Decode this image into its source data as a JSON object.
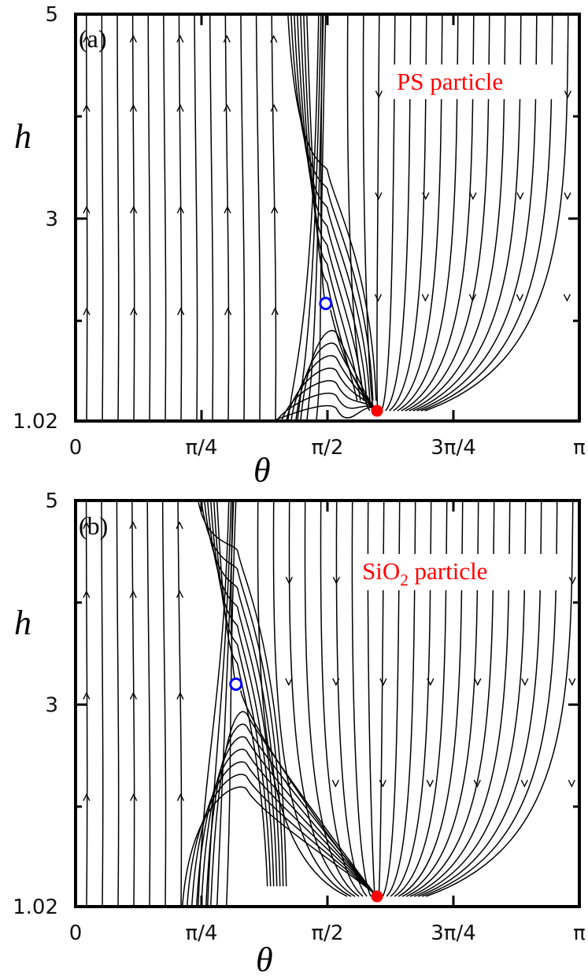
{
  "figure": {
    "colors": {
      "stable": "#ff0000",
      "saddle": "#0000ff",
      "lines": "#000000",
      "label": "#ff0000"
    }
  },
  "chart_data": [
    {
      "type": "streamplot",
      "panel_label": "(a)",
      "particle_label": {
        "main": "PS",
        "sub": "",
        "rest": " particle"
      },
      "xlabel": "θ",
      "ylabel": "h",
      "xlim": [
        0,
        3.1416
      ],
      "ylim": [
        1.02,
        5
      ],
      "x_ticks": [
        {
          "value": 0,
          "label": "0"
        },
        {
          "value": 0.7854,
          "label": "π/4"
        },
        {
          "value": 1.5708,
          "label": "π/2"
        },
        {
          "value": 2.3562,
          "label": "3π/4"
        },
        {
          "value": 3.1416,
          "label": "π"
        }
      ],
      "y_ticks": [
        {
          "value": 1.02,
          "label": "1.02"
        },
        {
          "value": 3,
          "label": "3"
        },
        {
          "value": 5,
          "label": "5"
        }
      ],
      "y_minor_ticks": [
        2,
        4
      ],
      "saddle_point": {
        "theta": 1.56,
        "h": 2.17
      },
      "stable_point": {
        "theta": 1.88,
        "h": 1.12
      },
      "flow_description": "upward for theta < 1.5, downward for theta > 1.6"
    },
    {
      "type": "streamplot",
      "panel_label": "(b)",
      "particle_label": {
        "main": "SiO",
        "sub": "2",
        "rest": " particle"
      },
      "xlabel": "θ",
      "ylabel": "h",
      "xlim": [
        0,
        3.1416
      ],
      "ylim": [
        1.02,
        5
      ],
      "x_ticks": [
        {
          "value": 0,
          "label": "0"
        },
        {
          "value": 0.7854,
          "label": "π/4"
        },
        {
          "value": 1.5708,
          "label": "π/2"
        },
        {
          "value": 2.3562,
          "label": "3π/4"
        },
        {
          "value": 3.1416,
          "label": "π"
        }
      ],
      "y_ticks": [
        {
          "value": 1.02,
          "label": "1.02"
        },
        {
          "value": 3,
          "label": "3"
        },
        {
          "value": 5,
          "label": "5"
        }
      ],
      "y_minor_ticks": [
        2,
        4
      ],
      "saddle_point": {
        "theta": 1.0,
        "h": 3.2
      },
      "stable_point": {
        "theta": 1.88,
        "h": 1.12
      },
      "flow_description": "upward for theta < 0.9, downward for theta > 1.1"
    }
  ]
}
